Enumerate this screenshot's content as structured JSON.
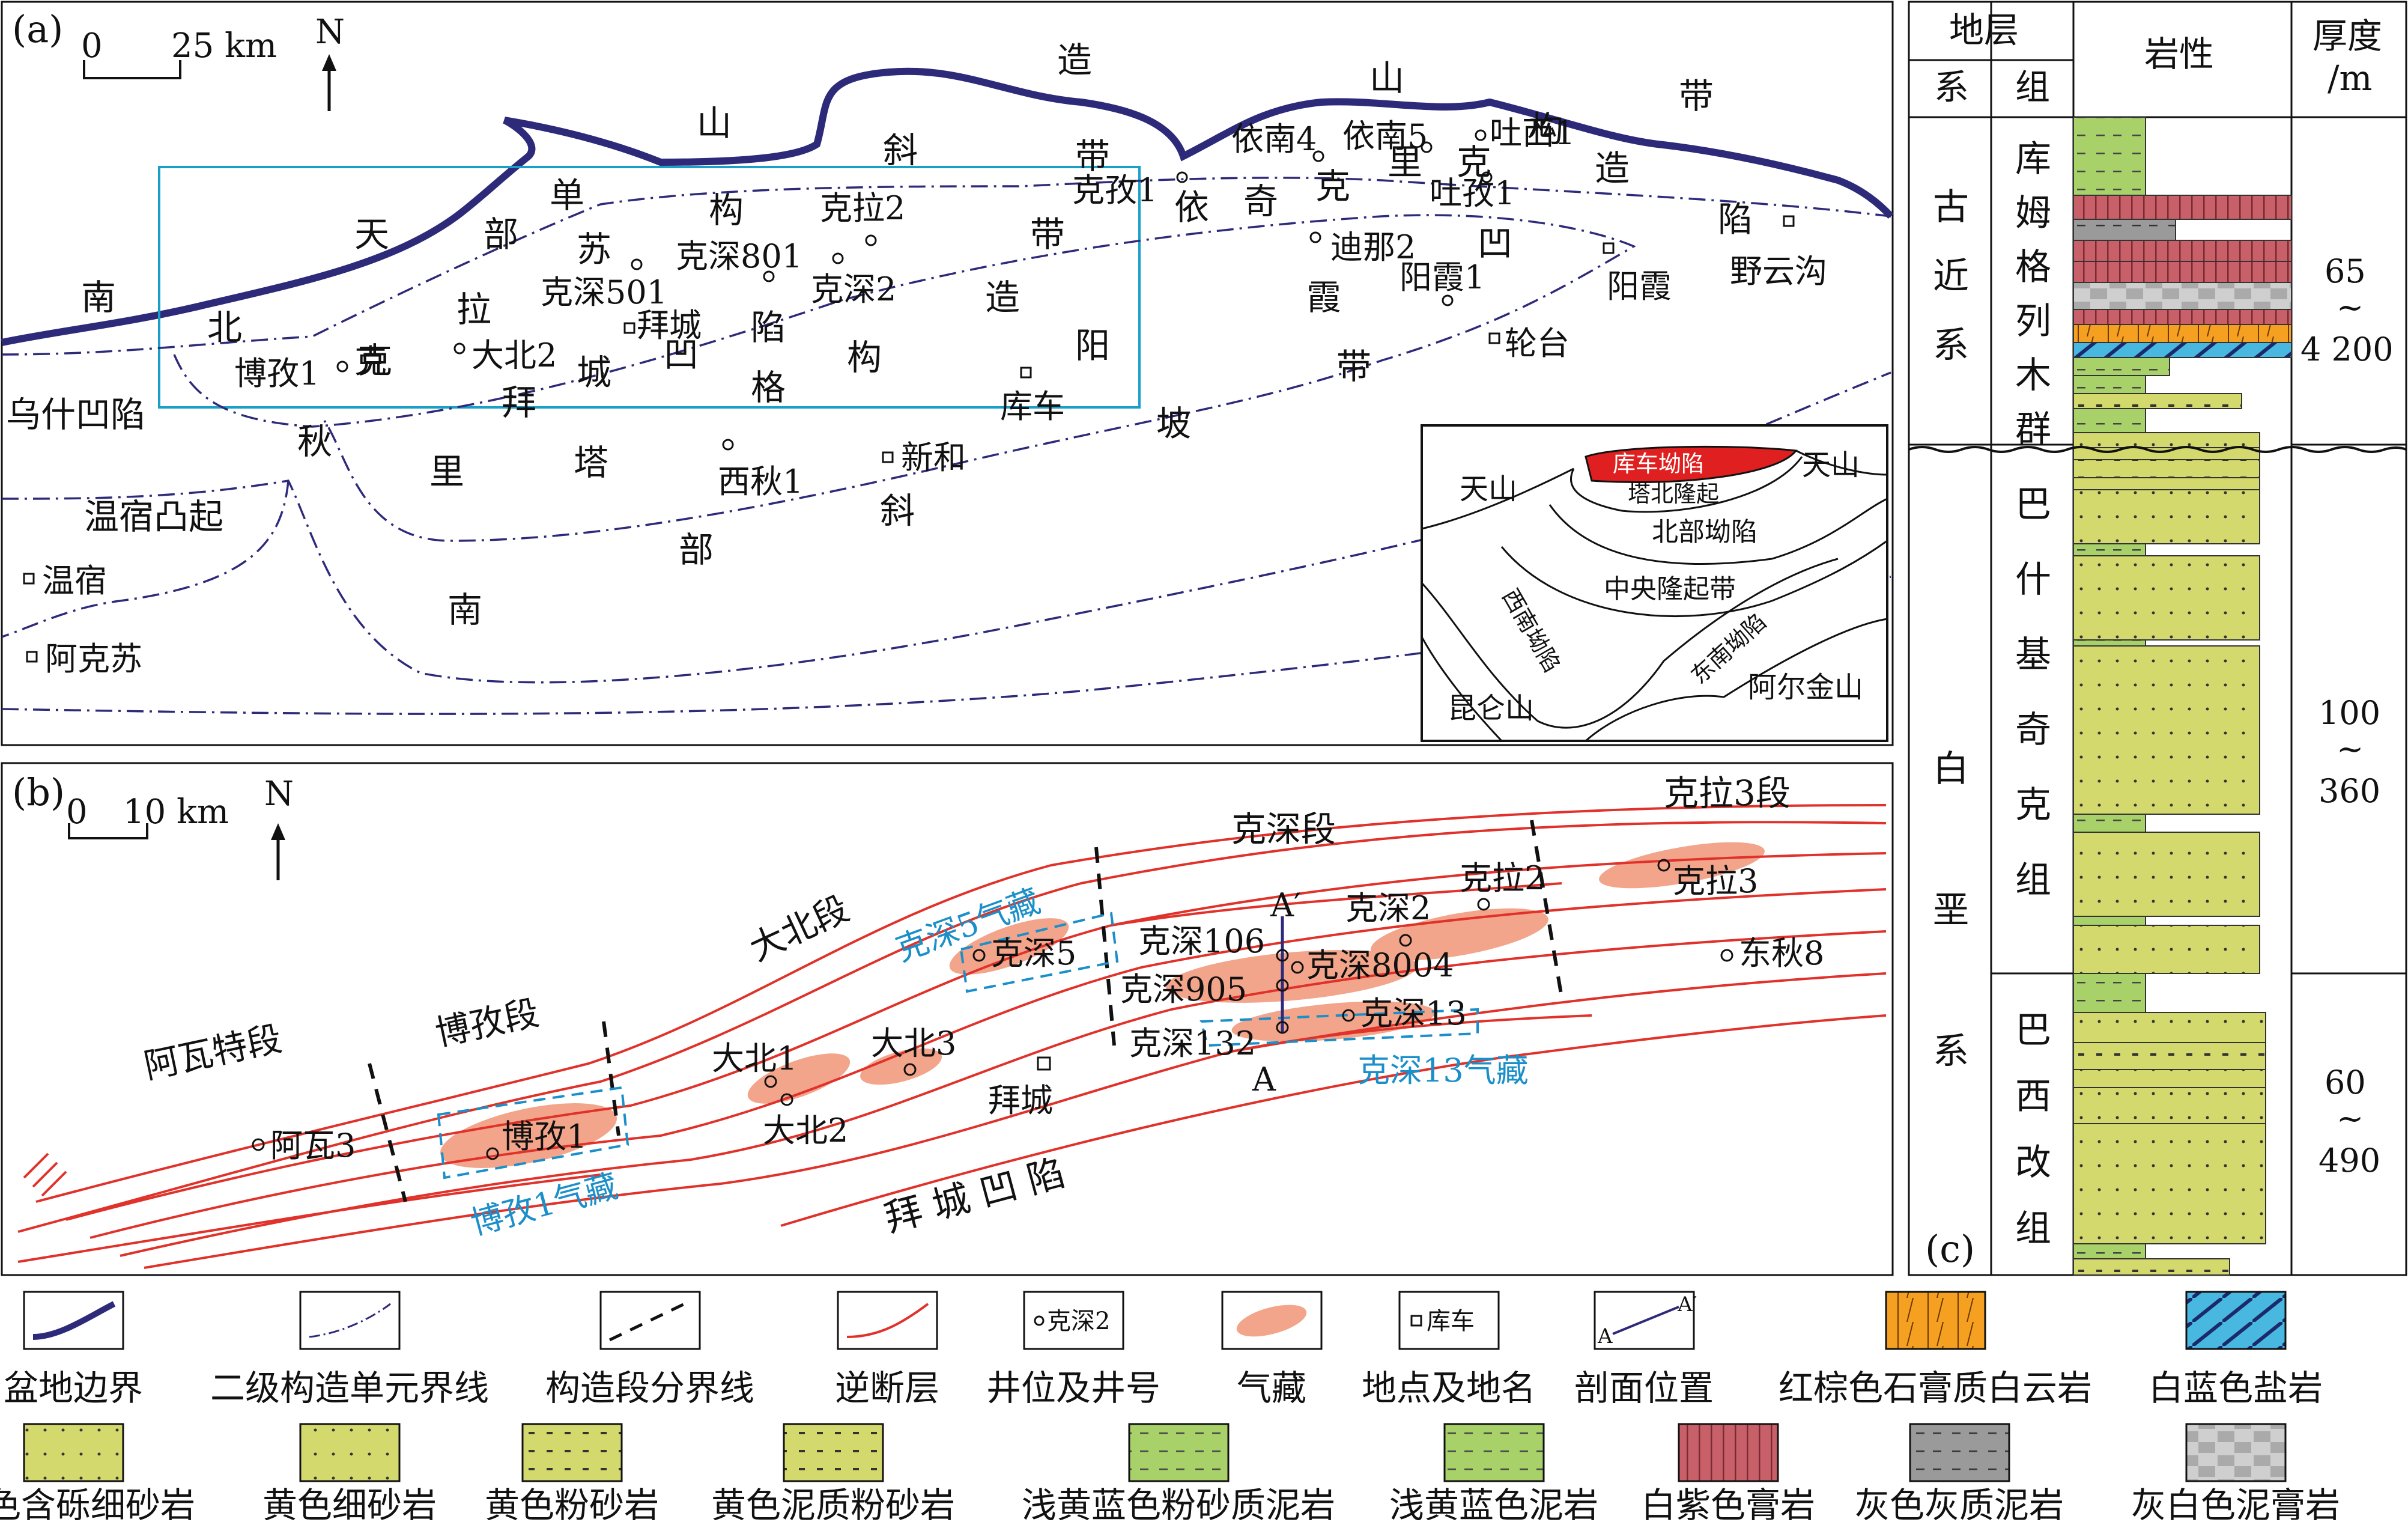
{
  "panel_a": {
    "tag": "(a)",
    "scale": {
      "zero": "0",
      "value": "25 km"
    },
    "north": "N",
    "regions": [
      "南",
      "天",
      "山",
      "北",
      "单",
      "斜",
      "造",
      "山",
      "带",
      "部",
      "苏",
      "拉",
      "构",
      "克",
      "秋",
      "里",
      "塔",
      "拜",
      "城",
      "凹",
      "陷",
      "格",
      "构",
      "造",
      "带",
      "阳",
      "坡",
      "依",
      "奇",
      "克",
      "里",
      "克",
      "构",
      "造",
      "带",
      "凹",
      "陷",
      "霞",
      "带",
      "斜",
      "部",
      "南",
      "乌什凹陷",
      "温宿凸起"
    ],
    "wells": [
      "博孜1",
      "克",
      "大北2",
      "拜城",
      "克深501",
      "克深801",
      "克深2",
      "克拉2",
      "克孜1",
      "依南4",
      "依南5",
      "吐西1",
      "吐孜1",
      "迪那2",
      "阳霞1",
      "阳霞",
      "野云沟",
      "轮台",
      "库车",
      "西秋1",
      "新和",
      "温宿",
      "阿克苏"
    ],
    "inset": [
      "库车坳陷",
      "塔北隆起",
      "天山",
      "天山",
      "北部坳陷",
      "中央隆起带",
      "西南坳陷",
      "东南坳陷",
      "昆仑山",
      "阿尔金山"
    ]
  },
  "panel_b": {
    "tag": "(b)",
    "scale": {
      "zero": "0",
      "value": "10 km"
    },
    "north": "N",
    "segments": [
      "阿瓦特段",
      "博孜段",
      "大北段",
      "克深段",
      "克拉3段"
    ],
    "wells": [
      "阿瓦3",
      "博孜1",
      "大北1",
      "大北2",
      "大北3",
      "克深5",
      "克深106",
      "克深905",
      "克深132",
      "克深8004",
      "克深13",
      "克深2",
      "克拉2",
      "克拉3",
      "东秋8",
      "拜城"
    ],
    "gas_labels": [
      "克深5气藏",
      "博孜1气藏",
      "克深13气藏"
    ],
    "section": {
      "a": "A",
      "a_prime": "A′"
    },
    "depression": "拜 城 凹 陷"
  },
  "panel_c": {
    "tag": "(c)",
    "header": {
      "strata": "地层",
      "system": "系",
      "group": "组",
      "lithology": "岩性",
      "thickness": "厚度",
      "unit": "/m"
    },
    "rows": [
      {
        "system": "古近系",
        "group": "库姆格列木群",
        "thickness": [
          "65",
          "~",
          "4 200"
        ]
      },
      {
        "system": "白垩系",
        "group": "巴什基奇克组",
        "thickness": [
          "100",
          "~",
          "360"
        ]
      },
      {
        "system": "",
        "group": "巴西改组",
        "thickness": [
          "60",
          "~",
          "490"
        ]
      }
    ]
  },
  "legend": [
    {
      "id": "basin-boundary",
      "label": "盆地边界"
    },
    {
      "id": "unit-boundary",
      "label": "二级构造单元界线"
    },
    {
      "id": "segment-boundary",
      "label": "构造段分界线"
    },
    {
      "id": "thrust-fault",
      "label": "逆断层"
    },
    {
      "id": "well",
      "label": "井位及井号",
      "sample": "克深2"
    },
    {
      "id": "gas-reservoir",
      "label": "气藏"
    },
    {
      "id": "place",
      "label": "地点及地名",
      "sample": "库车"
    },
    {
      "id": "section-line",
      "label": "剖面位置",
      "sample": "A",
      "sample2": "A′"
    },
    {
      "id": "gypsum-dolomite",
      "label": "红棕色石膏质白云岩"
    },
    {
      "id": "salt",
      "label": "白蓝色盐岩"
    },
    {
      "id": "gravel-sandstone",
      "label": "黄色含砾细砂岩"
    },
    {
      "id": "fine-sandstone",
      "label": "黄色细砂岩"
    },
    {
      "id": "siltstone",
      "label": "黄色粉砂岩"
    },
    {
      "id": "muddy-siltstone",
      "label": "黄色泥质粉砂岩"
    },
    {
      "id": "silty-mudstone",
      "label": "浅黄蓝色粉砂质泥岩"
    },
    {
      "id": "mudstone",
      "label": "浅黄蓝色泥岩"
    },
    {
      "id": "gypsum-rock",
      "label": "白紫色膏岩"
    },
    {
      "id": "calc-mudstone",
      "label": "灰色灰质泥岩"
    },
    {
      "id": "gypsum-mudstone",
      "label": "灰白色泥膏岩"
    }
  ],
  "colors": {
    "fault": "#e0322a",
    "boundary": "#2e2a7a",
    "gas": "#f2a58a",
    "study_box": "#1aa0c8",
    "sand": "#d4d96e",
    "mud": "#a8d16a",
    "gypsum": "#c8606a",
    "grey": "#9a9a9a",
    "orange": "#f5a020",
    "salt": "#48b8e0"
  }
}
